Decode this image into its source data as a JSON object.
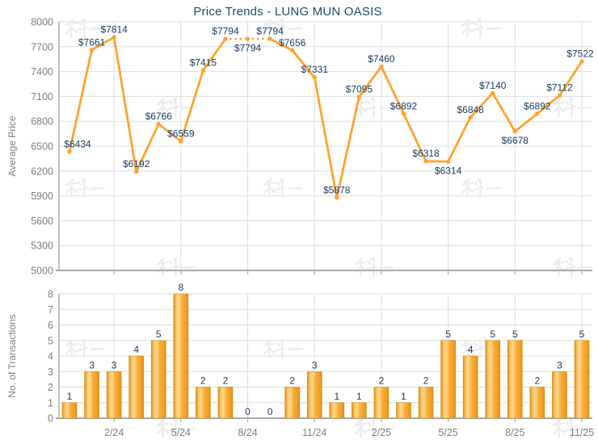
{
  "title": "Price Trends - LUNG MUN OASIS",
  "watermark_text": "科一",
  "colors": {
    "title": "#1D4F63",
    "line": "#FFA32E",
    "bar_light": "#FFD98E",
    "bar_main": "#F9AE3B",
    "bar_dark": "#E08E14",
    "bar_edge": "#D78C0E",
    "data_label": "#1B3E66",
    "axis_text": "#7F7F7F",
    "grid_line": "#DEDEDE",
    "axis_line": "#ABABAB",
    "watermark": "#EDEDED"
  },
  "chart_data": [
    {
      "type": "line",
      "title": "Price Trends - LUNG MUN OASIS",
      "ylabel": "Average Price",
      "ylim": [
        5000,
        8000
      ],
      "ytick_step": 300,
      "grid": true,
      "legend_position": "none",
      "x": [
        "12/23",
        "1/24",
        "2/24",
        "3/24",
        "4/24",
        "5/24",
        "6/24",
        "7/24",
        "8/24",
        "9/24",
        "10/24",
        "11/24",
        "12/24",
        "1/25",
        "2/25",
        "3/25",
        "4/25",
        "5/25",
        "6/25",
        "7/25",
        "8/25",
        "9/25",
        "10/25",
        "11/25"
      ],
      "x_label_indices": [
        2,
        5,
        8,
        11,
        14,
        17,
        20,
        23
      ],
      "x_axis_labels": [
        "2/24",
        "5/24",
        "8/24",
        "11/24",
        "2/25",
        "5/25",
        "8/25",
        "11/25"
      ],
      "values": [
        6434,
        7661,
        7814,
        6192,
        6766,
        6559,
        7415,
        7794,
        7794,
        7794,
        7656,
        7331,
        5878,
        7095,
        7460,
        6892,
        6318,
        6314,
        6848,
        7140,
        6678,
        6892,
        7112,
        7522
      ],
      "point_labels": [
        "$6434",
        "$7661",
        "$7814",
        "$6192",
        "$6766",
        "$6559",
        "$7415",
        "$7794",
        "$7794",
        "$7794",
        "$7656",
        "$7331",
        "$5878",
        "$7095",
        "$7460",
        "$6892",
        "$6318",
        "$6314",
        "$6848",
        "$7140",
        "$6678",
        "$6892",
        "$7112",
        "$7522"
      ],
      "labels_below_indices": [
        8,
        17,
        20
      ],
      "dotted_segments": [
        [
          7,
          8
        ],
        [
          8,
          9
        ]
      ]
    },
    {
      "type": "bar",
      "ylabel": "No. of Transactions",
      "ylim": [
        0,
        8
      ],
      "ytick_step": 1,
      "grid": true,
      "legend_position": "none",
      "x": [
        "12/23",
        "1/24",
        "2/24",
        "3/24",
        "4/24",
        "5/24",
        "6/24",
        "7/24",
        "8/24",
        "9/24",
        "10/24",
        "11/24",
        "12/24",
        "1/25",
        "2/25",
        "3/25",
        "4/25",
        "5/25",
        "6/25",
        "7/25",
        "8/25",
        "9/25",
        "10/25",
        "11/25"
      ],
      "x_label_indices": [
        2,
        5,
        8,
        11,
        14,
        17,
        20,
        23
      ],
      "x_axis_labels": [
        "2/24",
        "5/24",
        "8/24",
        "11/24",
        "2/25",
        "5/25",
        "8/25",
        "11/25"
      ],
      "values": [
        1,
        3,
        3,
        4,
        5,
        8,
        2,
        2,
        0,
        0,
        2,
        3,
        1,
        1,
        2,
        1,
        2,
        5,
        4,
        5,
        5,
        2,
        3,
        5
      ]
    }
  ]
}
